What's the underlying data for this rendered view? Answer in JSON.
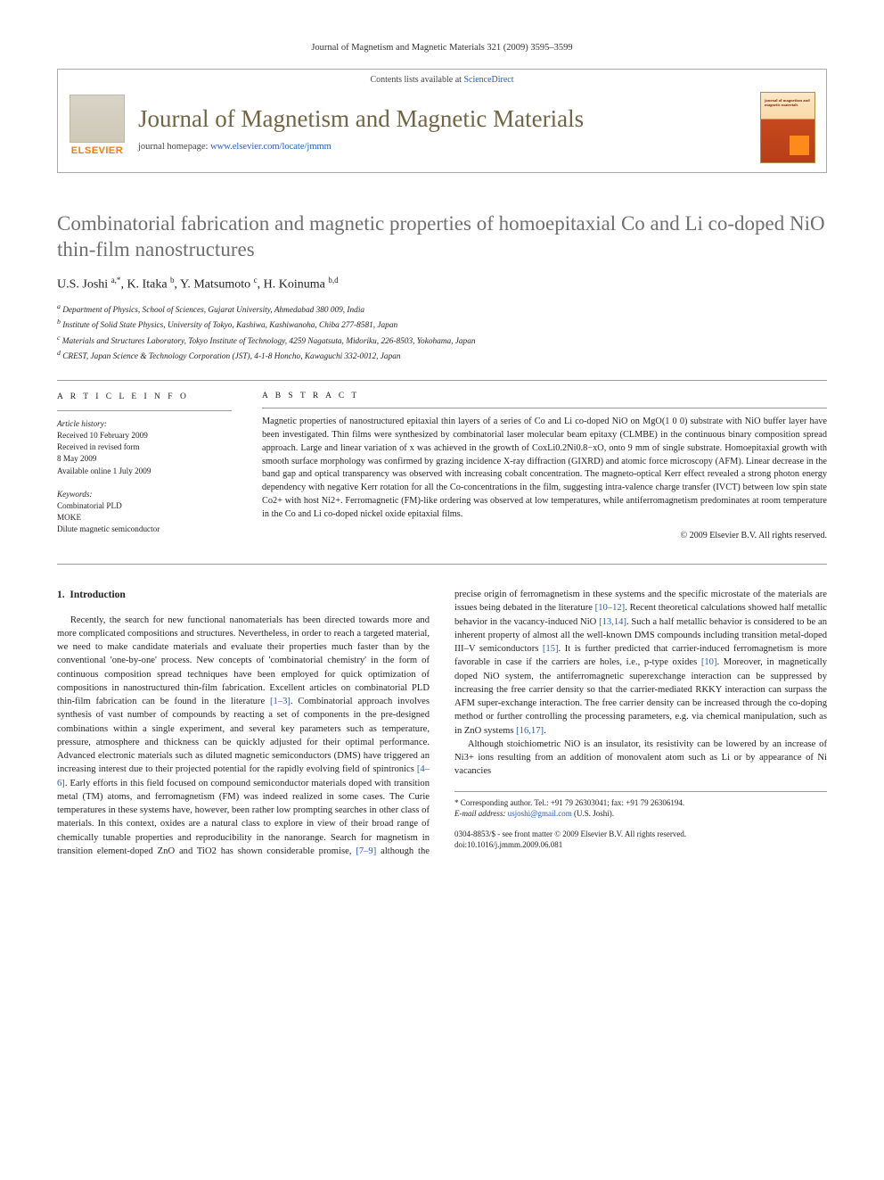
{
  "running_head": "Journal of Magnetism and Magnetic Materials 321 (2009) 3595–3599",
  "banner": {
    "contents_line_prefix": "Contents lists available at ",
    "contents_link": "ScienceDirect",
    "journal_title": "Journal of Magnetism and Magnetic Materials",
    "homepage_prefix": "journal homepage: ",
    "homepage_url": "www.elsevier.com/locate/jmmm",
    "publisher": "ELSEVIER",
    "cover_text": "journal of magnetism and magnetic materials"
  },
  "article": {
    "title": "Combinatorial fabrication and magnetic properties of homoepitaxial Co and Li co-doped NiO thin-film nanostructures",
    "authors_html": "U.S. Joshi <sup>a,*</sup>, K. Itaka <sup>b</sup>, Y. Matsumoto <sup>c</sup>, H. Koinuma <sup>b,d</sup>",
    "affiliations": {
      "a": "Department of Physics, School of Sciences, Gujarat University, Ahmedabad 380 009, India",
      "b": "Institute of Solid State Physics, University of Tokyo, Kashiwa, Kashiwanoha, Chiba 277-8581, Japan",
      "c": "Materials and Structures Laboratory, Tokyo Institute of Technology, 4259 Nagatsuta, Midoriku, 226-8503, Yokohama, Japan",
      "d": "CREST, Japan Science & Technology Corporation (JST), 4-1-8 Honcho, Kawaguchi 332-0012, Japan"
    }
  },
  "meta": {
    "article_info_hd": "A R T I C L E   I N F O",
    "history_hd": "Article history:",
    "received": "Received 10 February 2009",
    "revised1": "Received in revised form",
    "revised2": "8 May 2009",
    "online": "Available online 1 July 2009",
    "keywords_hd": "Keywords:",
    "keywords": [
      "Combinatorial PLD",
      "MOKE",
      "Dilute magnetic semiconductor"
    ],
    "abstract_hd": "A B S T R A C T",
    "abstract": "Magnetic properties of nanostructured epitaxial thin layers of a series of Co and Li co-doped NiO on MgO(1 0 0) substrate with NiO buffer layer have been investigated. Thin films were synthesized by combinatorial laser molecular beam epitaxy (CLMBE) in the continuous binary composition spread approach. Large and linear variation of x was achieved in the growth of CoxLi0.2Ni0.8−xO, onto 9 mm of single substrate. Homoepitaxial growth with smooth surface morphology was confirmed by grazing incidence X-ray diffraction (GIXRD) and atomic force microscopy (AFM). Linear decrease in the band gap and optical transparency was observed with increasing cobalt concentration. The magneto-optical Kerr effect revealed a strong photon energy dependency with negative Kerr rotation for all the Co-concentrations in the film, suggesting intra-valence charge transfer (IVCT) between low spin state Co2+ with host Ni2+. Ferromagnetic (FM)-like ordering was observed at low temperatures, while antiferromagnetism predominates at room temperature in the Co and Li co-doped nickel oxide epitaxial films.",
    "copyright": "© 2009 Elsevier B.V. All rights reserved."
  },
  "body": {
    "section_number": "1.",
    "section_title": "Introduction",
    "p1_a": "Recently, the search for new functional nanomaterials has been directed towards more and more complicated compositions and structures. Nevertheless, in order to reach a targeted material, we need to make candidate materials and evaluate their properties much faster than by the conventional 'one-by-one' process. New concepts of 'combinatorial chemistry' in the form of continuous composition spread techniques have been employed for quick optimization of compositions in nanostructured thin-film fabrication. Excellent articles on combinatorial PLD thin-film fabrication can be found in the literature ",
    "ref1": "[1–3]",
    "p1_b": ". Combinatorial approach involves synthesis of vast number of compounds by reacting a set of components in the pre-designed combinations within a single experiment, and several key parameters such as temperature, pressure, atmosphere and thickness can be quickly adjusted for their optimal performance. Advanced electronic materials such as diluted magnetic semiconductors (DMS) have triggered an increasing interest due to their projected potential for the rapidly evolving field of spintronics ",
    "ref2": "[4–6]",
    "p1_c": ". Early efforts in this field focused on compound semiconductor materials doped with transition metal (TM) atoms, and ferromagnetism (FM) was ",
    "p2_a": "indeed realized in some cases. The Curie temperatures in these systems have, however, been rather low prompting searches in other class of materials. In this context, oxides are a natural class to explore in view of their broad range of chemically tunable properties and reproducibility in the nanorange. Search for magnetism in transition element-doped ZnO and TiO2 has shown considerable promise, ",
    "ref3": "[7–9]",
    "p2_b": " although the precise origin of ferromagnetism in these systems and the specific microstate of the materials are issues being debated in the literature ",
    "ref4": "[10–12]",
    "p2_c": ". Recent theoretical calculations showed half metallic behavior in the vacancy-induced NiO ",
    "ref5": "[13,14]",
    "p2_d": ". Such a half metallic behavior is considered to be an inherent property of almost all the well-known DMS compounds including transition metal-doped III–V semiconductors ",
    "ref6": "[15]",
    "p2_e": ". It is further predicted that carrier-induced ferromagnetism is more favorable in case if the carriers are holes, i.e., p-type oxides ",
    "ref7": "[10]",
    "p2_f": ". Moreover, in magnetically doped NiO system, the antiferromagnetic superexchange interaction can be suppressed by increasing the free carrier density so that the carrier-mediated RKKY interaction can surpass the AFM super-exchange interaction. The free carrier density can be increased through the co-doping method or further controlling the processing parameters, e.g. via chemical manipulation, such as in ZnO systems ",
    "ref8": "[16,17]",
    "p2_g": ".",
    "p3": "Although stoichiometric NiO is an insulator, its resistivity can be lowered by an increase of Ni3+ ions resulting from an addition of monovalent atom such as Li or by appearance of Ni vacancies"
  },
  "footnotes": {
    "corr": "* Corresponding author. Tel.: +91 79 26303041; fax: +91 79 26306194.",
    "email_lbl": "E-mail address: ",
    "email": "usjoshi@gmail.com",
    "email_who": " (U.S. Joshi)."
  },
  "footer": {
    "line1": "0304-8853/$ - see front matter © 2009 Elsevier B.V. All rights reserved.",
    "line2": "doi:10.1016/j.jmmm.2009.06.081"
  },
  "colors": {
    "link": "#2a5db0",
    "title_gray": "#6f6f6f",
    "journal_olive": "#726544",
    "elsevier_orange": "#ff7a00"
  }
}
